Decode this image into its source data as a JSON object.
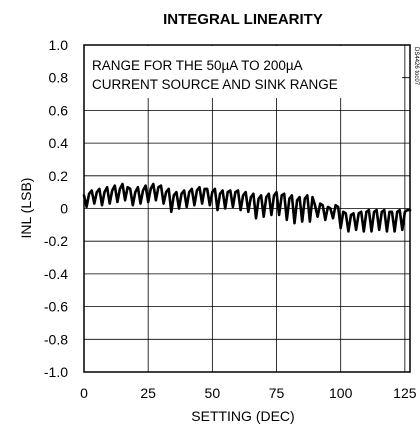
{
  "chart_data": {
    "type": "line",
    "title": "INTEGRAL LINEARITY",
    "xlabel": "SETTING (DEC)",
    "ylabel": "INL (LSB)",
    "xlim": [
      0,
      127
    ],
    "ylim": [
      -1.0,
      1.0
    ],
    "xticks": [
      "0",
      "25",
      "50",
      "75",
      "100",
      "125"
    ],
    "yticks": [
      "1.0",
      "0.8",
      "0.6",
      "0.4",
      "0.2",
      "0",
      "-0.2",
      "-0.4",
      "-0.6",
      "-0.8",
      "-1.0"
    ],
    "grid": true,
    "annotation": [
      "RANGE FOR THE 50µA TO 200µA",
      "CURRENT SOURCE AND SINK RANGE"
    ],
    "figure_code": "DS4426 toc07",
    "series": [
      {
        "color": "#000000",
        "x": [
          0,
          1,
          2,
          3,
          4,
          5,
          6,
          7,
          8,
          9,
          10,
          11,
          12,
          13,
          14,
          15,
          16,
          17,
          18,
          19,
          20,
          21,
          22,
          23,
          24,
          25,
          26,
          27,
          28,
          29,
          30,
          31,
          32,
          33,
          34,
          35,
          36,
          37,
          38,
          39,
          40,
          41,
          42,
          43,
          44,
          45,
          46,
          47,
          48,
          49,
          50,
          51,
          52,
          53,
          54,
          55,
          56,
          57,
          58,
          59,
          60,
          61,
          62,
          63,
          64,
          65,
          66,
          67,
          68,
          69,
          70,
          71,
          72,
          73,
          74,
          75,
          76,
          77,
          78,
          79,
          80,
          81,
          82,
          83,
          84,
          85,
          86,
          87,
          88,
          89,
          90,
          91,
          92,
          93,
          94,
          95,
          96,
          97,
          98,
          99,
          100,
          101,
          102,
          103,
          104,
          105,
          106,
          107,
          108,
          109,
          110,
          111,
          112,
          113,
          114,
          115,
          116,
          117,
          118,
          119,
          120,
          121,
          122,
          123,
          124,
          125,
          126,
          127
        ],
        "values": [
          0.08,
          0.01,
          0.09,
          0.11,
          0.03,
          0.1,
          0.12,
          0.02,
          0.1,
          0.13,
          0.03,
          0.11,
          0.14,
          0.04,
          0.12,
          0.15,
          0.05,
          0.13,
          0.12,
          0.02,
          0.1,
          0.13,
          0.03,
          0.11,
          0.14,
          0.04,
          0.12,
          0.15,
          0.05,
          0.13,
          0.14,
          0.03,
          0.1,
          0.12,
          -0.02,
          0.08,
          0.1,
          0.0,
          0.09,
          0.11,
          0.01,
          0.1,
          0.12,
          0.02,
          0.11,
          0.13,
          0.03,
          0.12,
          0.12,
          0.02,
          0.1,
          0.12,
          -0.01,
          0.09,
          0.11,
          0.0,
          0.1,
          0.11,
          0.01,
          0.1,
          0.11,
          -0.01,
          0.08,
          0.1,
          -0.02,
          0.07,
          0.09,
          -0.06,
          0.06,
          0.08,
          -0.05,
          0.07,
          0.09,
          -0.04,
          0.08,
          0.1,
          -0.04,
          0.08,
          0.09,
          -0.07,
          0.06,
          0.08,
          -0.09,
          0.05,
          0.07,
          -0.08,
          0.06,
          0.08,
          -0.08,
          0.07,
          0.02,
          -0.05,
          0.03,
          0.02,
          -0.07,
          0.01,
          0.0,
          -0.06,
          0.02,
          0.01,
          -0.12,
          -0.02,
          -0.03,
          -0.14,
          -0.04,
          -0.03,
          -0.13,
          -0.03,
          -0.02,
          -0.14,
          -0.02,
          -0.01,
          -0.14,
          -0.02,
          -0.01,
          -0.13,
          -0.02,
          -0.01,
          -0.14,
          -0.02,
          -0.02,
          -0.14,
          -0.02,
          -0.01,
          -0.13,
          -0.02,
          -0.01,
          -0.01
        ]
      }
    ]
  }
}
